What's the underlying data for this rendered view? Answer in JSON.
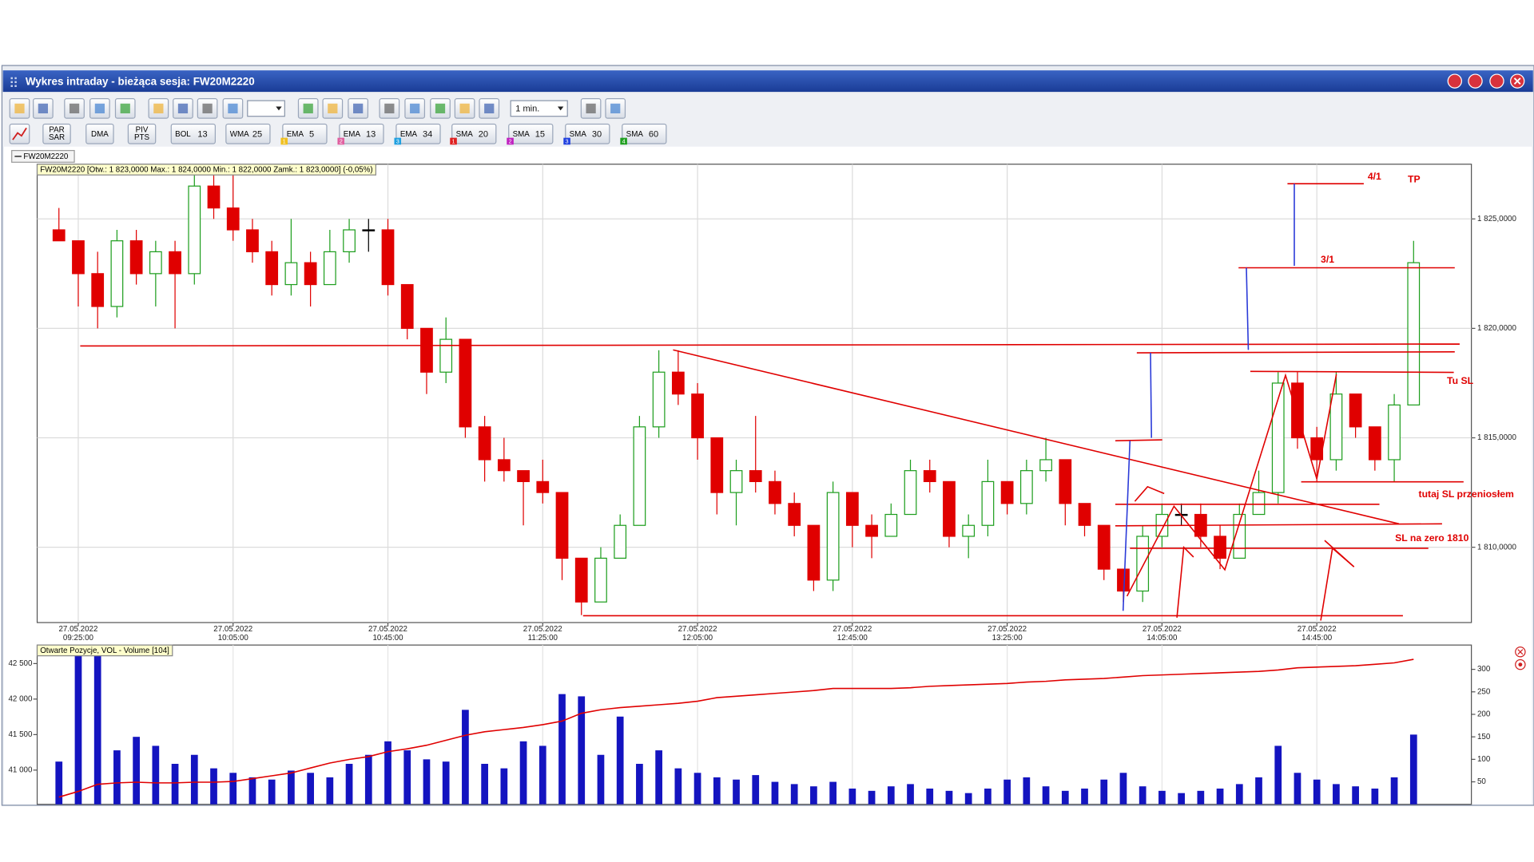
{
  "window": {
    "title": "Wykres intraday - bieżąca sesja: FW20M2220"
  },
  "toolbar": {
    "interval": "1 min.",
    "buttons": [
      [
        "PAR",
        "SAR"
      ],
      [
        "DMA"
      ],
      [
        "PIV",
        "PTS"
      ]
    ],
    "indicators": [
      {
        "name": "BOL",
        "param": "13"
      },
      {
        "name": "WMA",
        "param": "25"
      },
      {
        "name": "EMA",
        "param": "5",
        "badge": "1",
        "badge_color": "#f0c020"
      },
      {
        "name": "EMA",
        "param": "13",
        "badge": "2",
        "badge_color": "#e060a0"
      },
      {
        "name": "EMA",
        "param": "34",
        "badge": "3",
        "badge_color": "#20a0e0"
      },
      {
        "name": "SMA",
        "param": "20",
        "badge": "1",
        "badge_color": "#e02020"
      },
      {
        "name": "SMA",
        "param": "15",
        "badge": "2",
        "badge_color": "#c020c0"
      },
      {
        "name": "SMA",
        "param": "30",
        "badge": "3",
        "badge_color": "#2040e0"
      },
      {
        "name": "SMA",
        "param": "60",
        "badge": "4",
        "badge_color": "#20a020"
      }
    ]
  },
  "legend_tab": "FW20M2220",
  "chart_data": [
    {
      "type": "candlestick",
      "info": "FW20M2220 [Otw.: 1 823,0000  Max.: 1 824,0000  Min.: 1 822,0000  Zamk.: 1 823,0000] (-0,05%)",
      "x": [
        "09:20:00",
        "09:25:00",
        "09:30:00",
        "09:35:00",
        "09:40:00",
        "09:45:00",
        "09:50:00",
        "09:55:00",
        "10:00:00",
        "10:05:00",
        "10:10:00",
        "10:15:00",
        "10:20:00",
        "10:25:00",
        "10:30:00",
        "10:35:00",
        "10:40:00",
        "10:45:00",
        "10:50:00",
        "10:55:00",
        "11:00:00",
        "11:05:00",
        "11:10:00",
        "11:15:00",
        "11:20:00",
        "11:25:00",
        "11:30:00",
        "11:35:00",
        "11:40:00",
        "11:45:00",
        "11:50:00",
        "11:55:00",
        "12:00:00",
        "12:05:00",
        "12:10:00",
        "12:15:00",
        "12:20:00",
        "12:25:00",
        "12:30:00",
        "12:35:00",
        "12:40:00",
        "12:45:00",
        "12:50:00",
        "12:55:00",
        "13:00:00",
        "13:05:00",
        "13:10:00",
        "13:15:00",
        "13:20:00",
        "13:25:00",
        "13:30:00",
        "13:35:00",
        "13:40:00",
        "13:45:00",
        "13:50:00",
        "13:55:00",
        "14:00:00",
        "14:05:00",
        "14:10:00",
        "14:15:00",
        "14:20:00",
        "14:25:00",
        "14:30:00",
        "14:35:00",
        "14:40:00",
        "14:45:00",
        "14:50:00",
        "14:55:00",
        "15:00:00",
        "15:05:00",
        "15:10:00"
      ],
      "open": [
        1824.5,
        1824,
        1822.5,
        1821,
        1824,
        1822.5,
        1823.5,
        1822.5,
        1826.5,
        1825.5,
        1824.5,
        1823.5,
        1822,
        1823,
        1822,
        1823.5,
        1824.5,
        1824.5,
        1822,
        1820,
        1818,
        1819.5,
        1815.5,
        1814,
        1813.5,
        1813,
        1812.5,
        1809.5,
        1807.5,
        1809.5,
        1811,
        1815.5,
        1818,
        1817,
        1815,
        1812.5,
        1813.5,
        1813,
        1812,
        1811,
        1808.5,
        1812.5,
        1811,
        1810.5,
        1811.5,
        1813.5,
        1813,
        1810.5,
        1811,
        1813,
        1812,
        1813.5,
        1814,
        1812,
        1811,
        1809,
        1808,
        1810.5,
        1811.5,
        1811.5,
        1810.5,
        1809.5,
        1811.5,
        1812.5,
        1817.5,
        1815,
        1814,
        1817,
        1815.5,
        1814,
        1816.5
      ],
      "high": [
        1825.5,
        1824,
        1823.5,
        1824.5,
        1824.5,
        1824,
        1824,
        1827,
        1827.5,
        1827,
        1825,
        1824,
        1825,
        1823.5,
        1824.5,
        1825,
        1825,
        1825,
        1822,
        1820,
        1820.5,
        1819.5,
        1816,
        1815,
        1813.5,
        1814,
        1812.5,
        1809.5,
        1810,
        1811.5,
        1816,
        1819,
        1819,
        1817.5,
        1815,
        1814,
        1816,
        1813.5,
        1812.5,
        1811,
        1813,
        1812.5,
        1811.5,
        1812,
        1814,
        1814,
        1813,
        1811.5,
        1814,
        1813,
        1814,
        1815,
        1814,
        1812,
        1811,
        1809,
        1811,
        1812,
        1812,
        1812,
        1811,
        1812,
        1813.5,
        1818,
        1818,
        1815.5,
        1818,
        1817,
        1815.5,
        1817,
        1824
      ],
      "low": [
        1824,
        1821,
        1820,
        1820.5,
        1822,
        1821,
        1820,
        1822,
        1825,
        1824,
        1823,
        1821.5,
        1821.5,
        1821,
        1822,
        1823,
        1823.5,
        1821.5,
        1819.5,
        1817,
        1817.5,
        1815,
        1813,
        1813,
        1811,
        1812,
        1808.5,
        1806.9,
        1807.5,
        1809.5,
        1811,
        1815,
        1816.5,
        1814,
        1811.5,
        1811,
        1812.5,
        1811.5,
        1810.5,
        1808,
        1808,
        1810,
        1809.5,
        1810.5,
        1811.5,
        1812.5,
        1810,
        1809.5,
        1810.5,
        1811.5,
        1811.5,
        1813,
        1811,
        1810.5,
        1808.5,
        1807.5,
        1807.5,
        1810,
        1811,
        1810,
        1809,
        1809.5,
        1811.5,
        1812,
        1814.5,
        1813,
        1813.5,
        1815,
        1813.5,
        1813,
        1816.5
      ],
      "close": [
        1824,
        1822.5,
        1821,
        1824,
        1822.5,
        1823.5,
        1822.5,
        1826.5,
        1825.5,
        1824.5,
        1823.5,
        1822,
        1823,
        1822,
        1823.5,
        1824.5,
        1824.5,
        1822,
        1820,
        1818,
        1819.5,
        1815.5,
        1814,
        1813.5,
        1813,
        1812.5,
        1809.5,
        1807.5,
        1809.5,
        1811,
        1815.5,
        1818,
        1817,
        1815,
        1812.5,
        1813.5,
        1813,
        1812,
        1811,
        1808.5,
        1812.5,
        1811,
        1810.5,
        1811.5,
        1813.5,
        1813,
        1810.5,
        1811,
        1813,
        1812,
        1813.5,
        1814,
        1812,
        1811,
        1809,
        1808,
        1810.5,
        1811.5,
        1811.5,
        1810.5,
        1809.5,
        1811.5,
        1812.5,
        1817.5,
        1815,
        1814,
        1817,
        1815.5,
        1814,
        1816.5,
        1823
      ],
      "colors": {
        "up": "#1e9e1e",
        "down": "#e00000",
        "flat": "#000000"
      },
      "xlim": [
        "09:14:23",
        "15:24:56"
      ],
      "xticks": [
        {
          "value": "09:25:00",
          "label": [
            "27.05.2022",
            "09:25:00"
          ]
        },
        {
          "value": "10:05:00",
          "label": [
            "27.05.2022",
            "10:05:00"
          ]
        },
        {
          "value": "10:45:00",
          "label": [
            "27.05.2022",
            "10:45:00"
          ]
        },
        {
          "value": "11:25:00",
          "label": [
            "27.05.2022",
            "11:25:00"
          ]
        },
        {
          "value": "12:05:00",
          "label": [
            "27.05.2022",
            "12:05:00"
          ]
        },
        {
          "value": "12:45:00",
          "label": [
            "27.05.2022",
            "12:45:00"
          ]
        },
        {
          "value": "13:25:00",
          "label": [
            "27.05.2022",
            "13:25:00"
          ]
        },
        {
          "value": "14:05:00",
          "label": [
            "27.05.2022",
            "14:05:00"
          ]
        },
        {
          "value": "14:45:00",
          "label": [
            "27.05.2022",
            "14:45:00"
          ]
        }
      ],
      "ylim": [
        1806.56,
        1827.5
      ],
      "yticks": [
        {
          "value": 1810,
          "label": "1 810,0000"
        },
        {
          "value": 1815,
          "label": "1 815,0000"
        },
        {
          "value": 1820,
          "label": "1 820,0000"
        },
        {
          "value": 1825,
          "label": "1 825,0000"
        }
      ],
      "grid": true,
      "annotations": [
        "4/1",
        "TP",
        "3/1",
        "Tu SL",
        "tutaj SL przeniosłem",
        "SL na zero 1810"
      ],
      "annotation_color": "#e00000"
    },
    {
      "type": "combo",
      "title": "Otwarte Pozycje, VOL - Volume [104]",
      "ylim": [
        40518,
        42761
      ],
      "yticks": [
        {
          "value": 41000,
          "label": "41 000"
        },
        {
          "value": 41500,
          "label": "41 500"
        },
        {
          "value": 42000,
          "label": "42 000"
        },
        {
          "value": 42500,
          "label": "42 500"
        }
      ],
      "y2lim": [
        0,
        354
      ],
      "y2ticks": [
        50,
        100,
        150,
        200,
        250,
        300
      ],
      "grid": true,
      "series": [
        {
          "type": "line",
          "color": "#e00000",
          "values": [
            40620,
            40700,
            40800,
            40820,
            40830,
            40820,
            40820,
            40830,
            40830,
            40840,
            40880,
            40920,
            40960,
            41030,
            41100,
            41150,
            41190,
            41260,
            41300,
            41350,
            41420,
            41490,
            41540,
            41570,
            41600,
            41640,
            41690,
            41800,
            41850,
            41880,
            41900,
            41920,
            41940,
            41970,
            42020,
            42040,
            42060,
            42080,
            42100,
            42120,
            42150,
            42150,
            42150,
            42150,
            42160,
            42180,
            42190,
            42200,
            42210,
            42220,
            42240,
            42250,
            42270,
            42280,
            42290,
            42310,
            42330,
            42340,
            42350,
            42360,
            42370,
            42380,
            42390,
            42410,
            42440,
            42450,
            42460,
            42470,
            42490,
            42510,
            42560
          ]
        },
        {
          "type": "bar",
          "axis": "y2",
          "color": "#1414c0",
          "values": [
            95,
            335,
            330,
            120,
            150,
            130,
            90,
            110,
            80,
            70,
            60,
            55,
            75,
            70,
            60,
            90,
            110,
            140,
            120,
            100,
            95,
            210,
            90,
            80,
            140,
            130,
            245,
            240,
            110,
            195,
            90,
            120,
            80,
            70,
            60,
            55,
            65,
            50,
            45,
            40,
            50,
            35,
            30,
            40,
            45,
            35,
            30,
            25,
            35,
            55,
            60,
            40,
            30,
            35,
            55,
            70,
            40,
            30,
            25,
            30,
            35,
            45,
            60,
            130,
            70,
            55,
            45,
            40,
            35,
            60,
            155
          ]
        }
      ]
    }
  ]
}
